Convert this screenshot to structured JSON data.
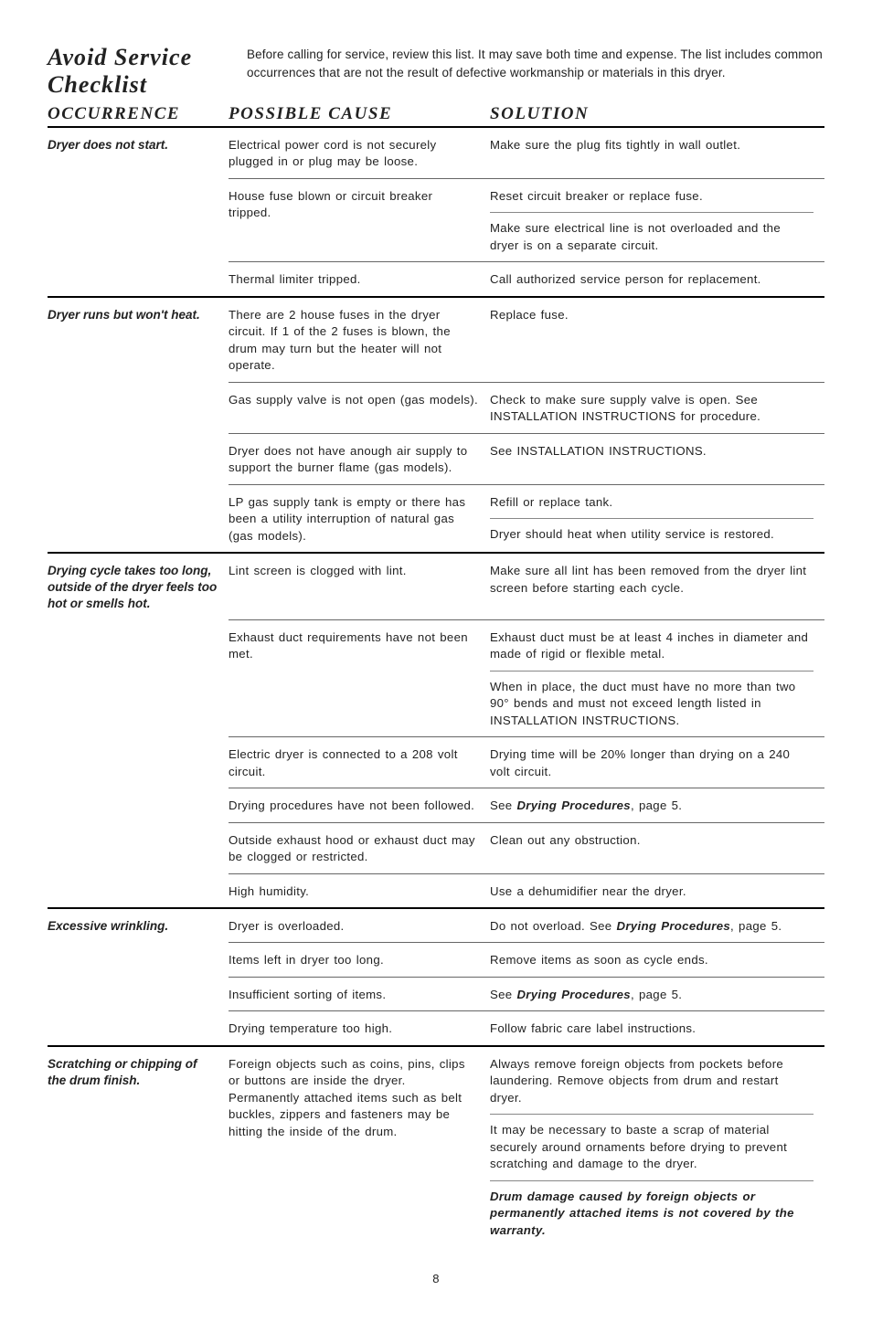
{
  "title": "Avoid Service Checklist",
  "intro": "Before calling for service, review this list. It may save both time and expense. The list includes common occurrences that are not the result of defective workmanship or materials in this dryer.",
  "headers": {
    "occurrence": "OCCURRENCE",
    "cause": "POSSIBLE CAUSE",
    "solution": "SOLUTION"
  },
  "page_number": "8",
  "dry_proc_label": "Drying Procedures",
  "sections": [
    {
      "occurrence": "Dryer does not start.",
      "rows": [
        {
          "cause": "Electrical power cord is not securely plugged in or plug may be loose.",
          "solutions": [
            "Make sure the plug fits tightly in wall outlet."
          ]
        },
        {
          "cause": "House fuse blown or circuit breaker tripped.",
          "solutions": [
            "Reset circuit breaker or replace fuse.",
            "Make sure electrical line is not overloaded and the dryer is on a separate circuit."
          ]
        },
        {
          "cause": "Thermal limiter tripped.",
          "solutions": [
            "Call authorized service person for replacement."
          ]
        }
      ]
    },
    {
      "occurrence": "Dryer runs but won't heat.",
      "rows": [
        {
          "cause": "There are 2 house fuses in the dryer circuit. If 1 of the 2 fuses is blown, the drum may turn but the heater will not operate.",
          "solutions": [
            "Replace fuse."
          ]
        },
        {
          "cause": "Gas supply valve is not open (gas models).",
          "solutions": [
            "Check to make sure supply valve is open. See INSTALLATION INSTRUCTIONS for procedure."
          ]
        },
        {
          "cause": "Dryer does not have anough air supply to support the burner flame (gas models).",
          "solutions": [
            "See INSTALLATION INSTRUCTIONS."
          ]
        },
        {
          "cause": "LP gas supply tank is empty or there has been a utility interruption of natural gas (gas models).",
          "solutions": [
            "Refill or replace tank.",
            "Dryer should heat when utility service is restored."
          ]
        }
      ]
    },
    {
      "occurrence": "Drying cycle takes too long, outside of the dryer feels too hot or smells hot.",
      "rows": [
        {
          "cause": "Lint screen is clogged with lint.",
          "solutions": [
            "Make sure all lint has been removed from the dryer lint screen before starting each cycle."
          ]
        },
        {
          "cause": "Exhaust duct requirements have not been met.",
          "solutions": [
            "Exhaust duct must be at least 4 inches in diameter and made of rigid or flexible metal.",
            "When in place, the duct must have no more than two 90° bends and must not exceed length listed in INSTALLATION INSTRUCTIONS."
          ]
        },
        {
          "cause": "Electric dryer is connected to a 208 volt circuit.",
          "solutions": [
            "Drying time will be 20% longer than drying on a 240 volt circuit."
          ]
        },
        {
          "cause": "Drying procedures have not been followed.",
          "solutions": [
            "See <span class=\"emph\">Drying Procedures</span>, page 5."
          ]
        },
        {
          "cause": "Outside exhaust hood or exhaust duct may be clogged or restricted.",
          "solutions": [
            "Clean out any obstruction."
          ]
        },
        {
          "cause": "High humidity.",
          "solutions": [
            "Use a dehumidifier near the dryer."
          ]
        }
      ]
    },
    {
      "occurrence": "Excessive wrinkling.",
      "rows": [
        {
          "cause": "Dryer is overloaded.",
          "solutions": [
            "Do not overload. See <span class=\"emph\">Drying Procedures</span>, page 5."
          ]
        },
        {
          "cause": "Items left in dryer too long.",
          "solutions": [
            "Remove items as soon as cycle ends."
          ]
        },
        {
          "cause": "Insufficient sorting of items.",
          "solutions": [
            "See <span class=\"emph\">Drying Procedures</span>, page 5."
          ]
        },
        {
          "cause": "Drying temperature too high.",
          "solutions": [
            "Follow fabric care label instructions."
          ]
        }
      ]
    },
    {
      "occurrence": "Scratching or chipping of the drum finish.",
      "rows": [
        {
          "cause": "Foreign objects such as coins, pins, clips or buttons are inside the dryer.<br>Permanently attached items such as belt buckles, zippers and fasteners may be hitting the inside of the drum.",
          "solutions": [
            "Always remove foreign objects from pockets before laundering. Remove objects from drum and restart dryer.",
            "It may be necessary to baste a scrap of material securely around ornaments before drying to prevent scratching and damage to the dryer.",
            "<span class=\"emph\">Drum damage caused by foreign objects or permanently attached items is not covered by the warranty.</span>"
          ]
        }
      ]
    }
  ]
}
